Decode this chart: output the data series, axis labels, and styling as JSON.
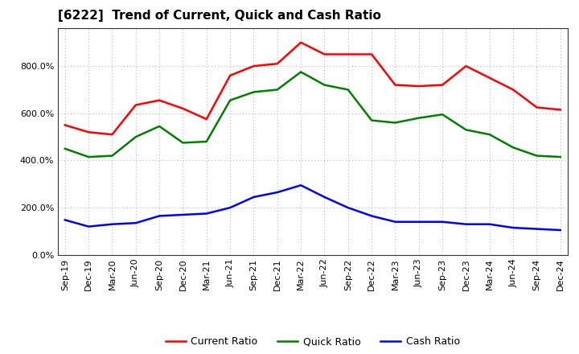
{
  "title": "[6222]  Trend of Current, Quick and Cash Ratio",
  "labels": [
    "Sep-19",
    "Dec-19",
    "Mar-20",
    "Jun-20",
    "Sep-20",
    "Dec-20",
    "Mar-21",
    "Jun-21",
    "Sep-21",
    "Dec-21",
    "Mar-22",
    "Jun-22",
    "Sep-22",
    "Dec-22",
    "Mar-23",
    "Jun-23",
    "Sep-23",
    "Dec-23",
    "Mar-24",
    "Jun-24",
    "Sep-24",
    "Dec-24"
  ],
  "current_ratio": [
    550,
    520,
    510,
    635,
    655,
    620,
    575,
    760,
    800,
    810,
    900,
    850,
    850,
    850,
    720,
    715,
    720,
    800,
    750,
    700,
    625,
    615
  ],
  "quick_ratio": [
    450,
    415,
    420,
    500,
    545,
    475,
    480,
    655,
    690,
    700,
    775,
    720,
    700,
    570,
    560,
    580,
    595,
    530,
    510,
    455,
    420,
    415
  ],
  "cash_ratio": [
    148,
    120,
    130,
    135,
    165,
    170,
    175,
    200,
    245,
    265,
    295,
    245,
    200,
    165,
    140,
    140,
    140,
    130,
    130,
    115,
    110,
    105
  ],
  "current_color": "#ff0000",
  "quick_color": "#008000",
  "cash_color": "#0000ff",
  "background_color": "#ffffff",
  "plot_bg_color": "#ffffff",
  "ylim": [
    0,
    960
  ],
  "yticks": [
    0,
    200,
    400,
    600,
    800
  ],
  "grid_color": "#aaaaaa",
  "linewidth": 1.8,
  "title_fontsize": 11,
  "tick_fontsize": 8,
  "legend_fontsize": 9
}
